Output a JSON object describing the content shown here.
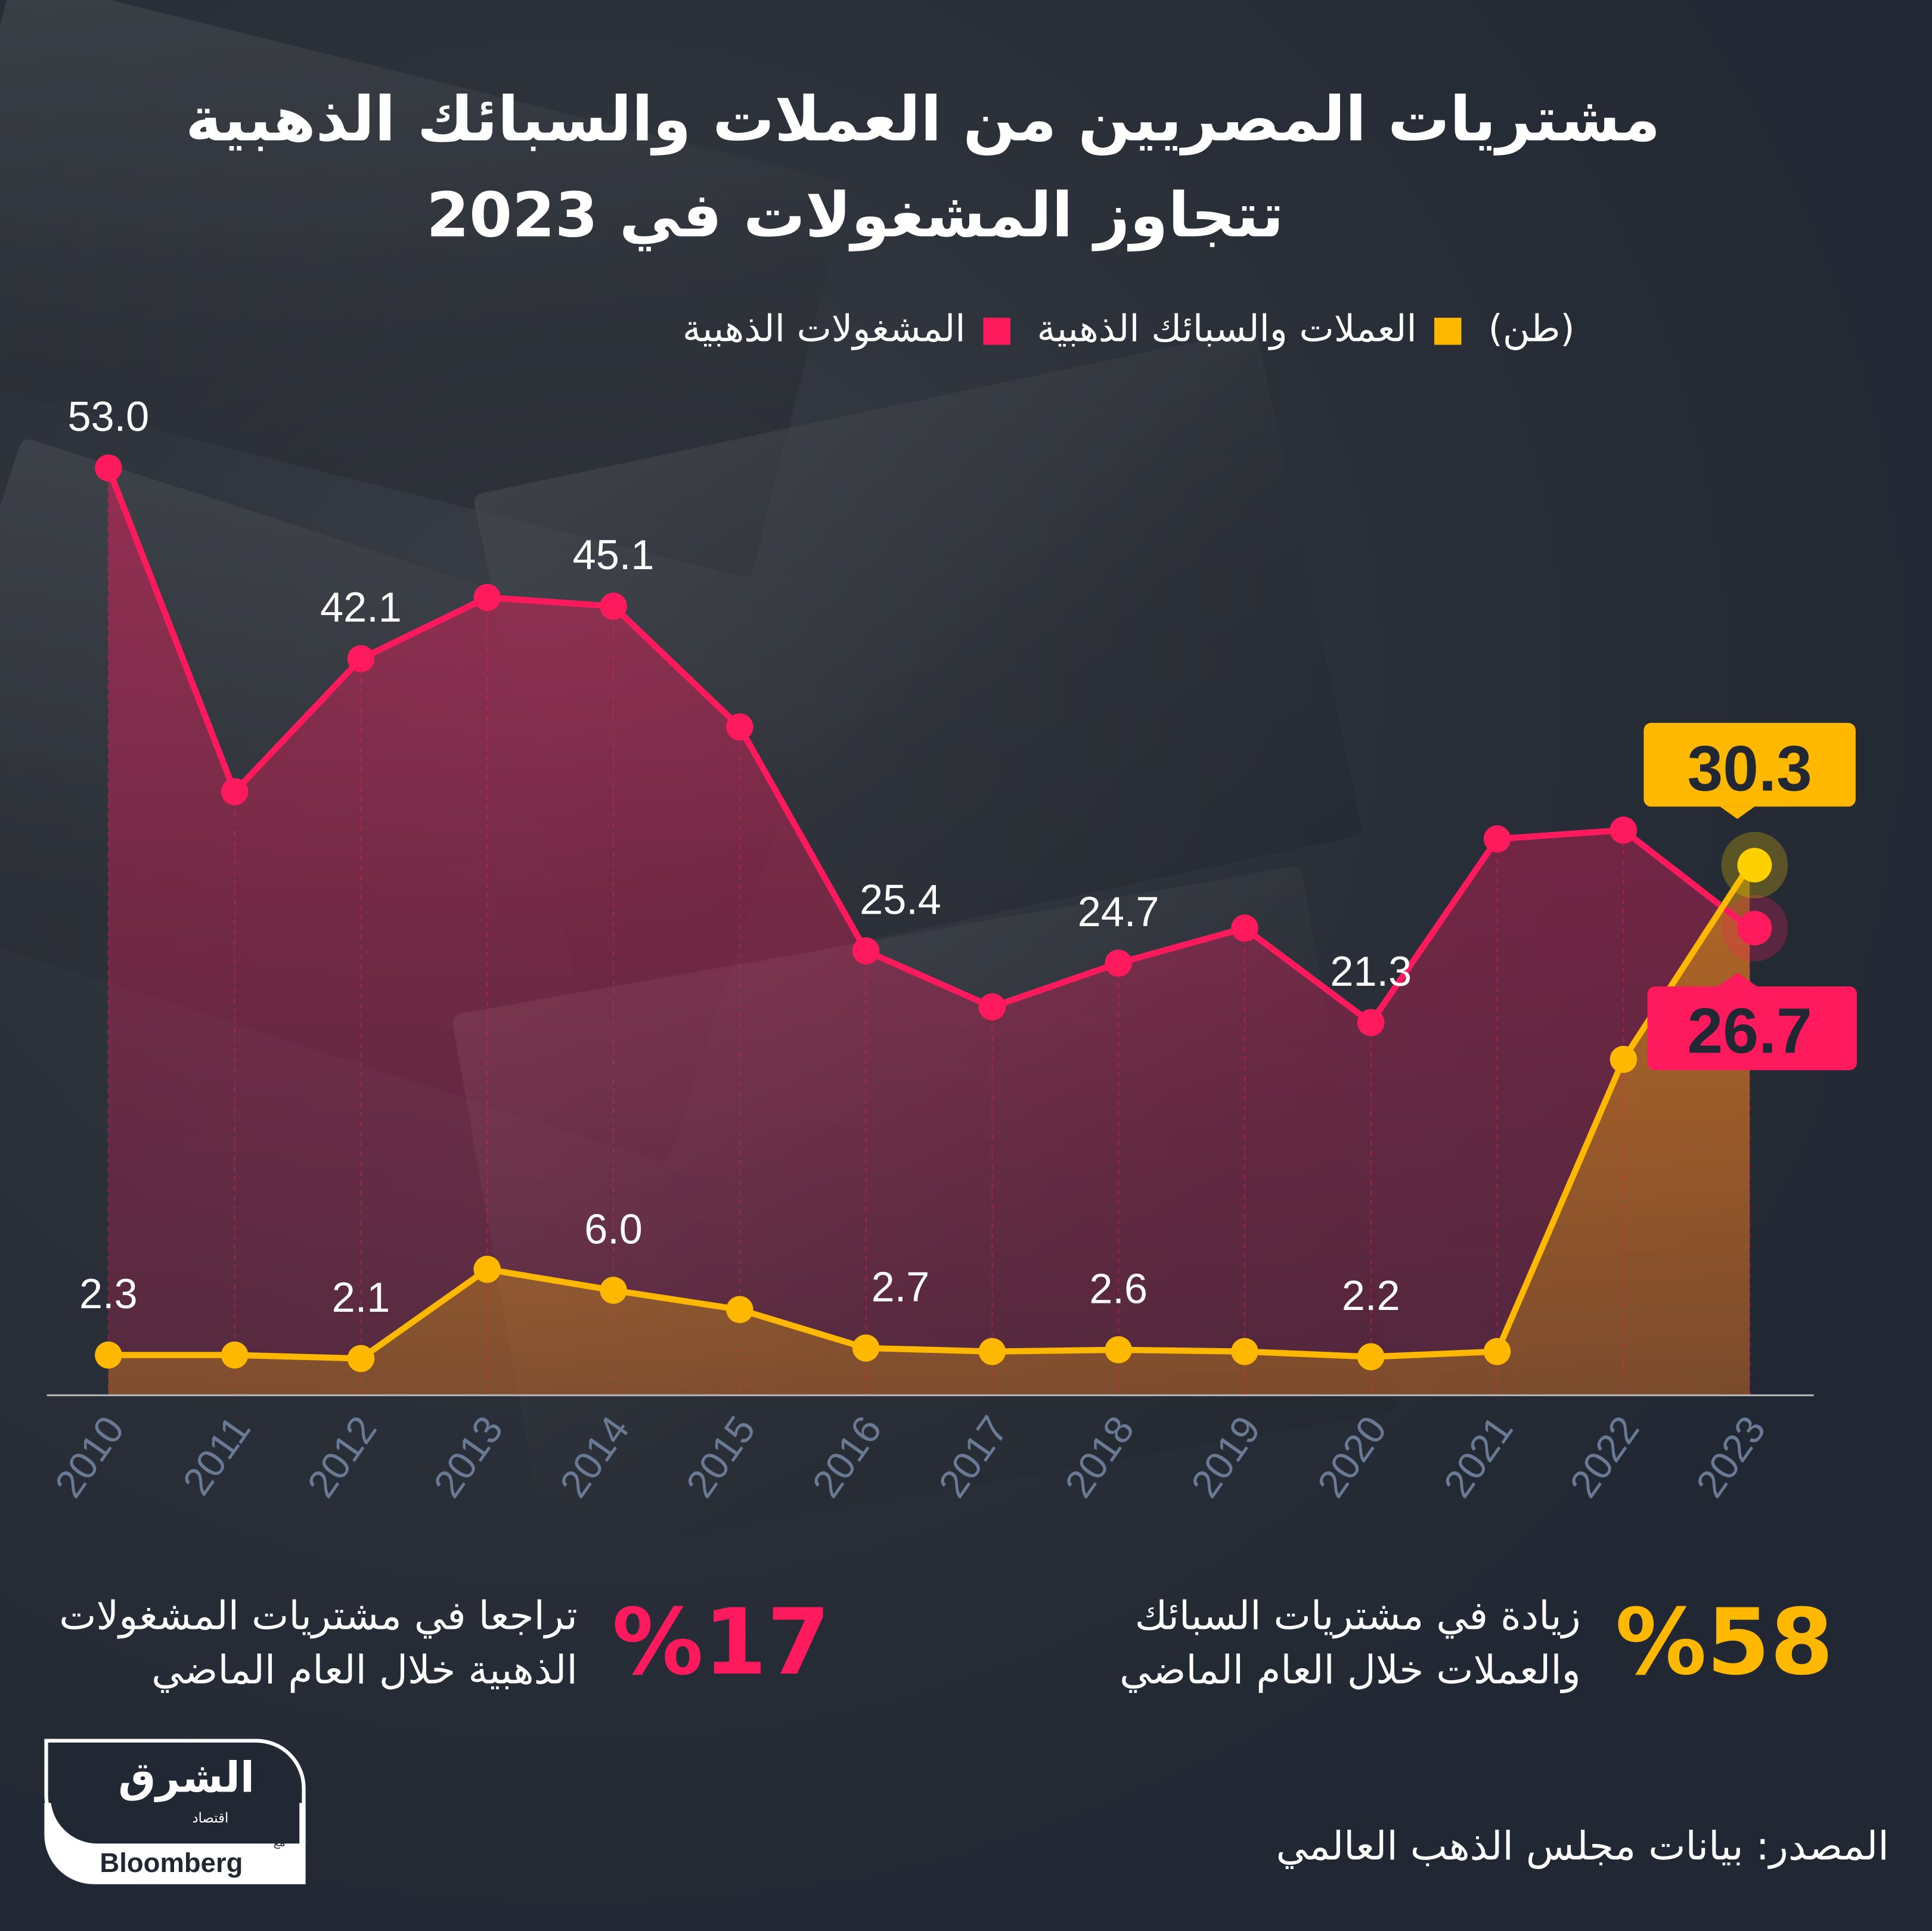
{
  "title": {
    "line1": "مشتريات المصريين من العملات والسبائك الذهبية",
    "line2": "تتجاوز المشغولات في 2023"
  },
  "legend": {
    "unit": "(طن)",
    "items": [
      {
        "label": "العملات والسبائك الذهبية",
        "color": "#FFB800"
      },
      {
        "label": "المشغولات الذهبية",
        "color": "#FF1A5E"
      }
    ]
  },
  "chart_data": {
    "type": "line",
    "categories": [
      "2010",
      "2011",
      "2012",
      "2013",
      "2014",
      "2015",
      "2016",
      "2017",
      "2018",
      "2019",
      "2020",
      "2021",
      "2022",
      "2023"
    ],
    "series": [
      {
        "name": "المشغولات الذهبية",
        "color": "#FF1A5E",
        "values": [
          53.0,
          34.5,
          42.1,
          45.6,
          45.1,
          38.2,
          25.4,
          22.2,
          24.7,
          26.7,
          21.3,
          31.8,
          32.3,
          26.7
        ],
        "labels": [
          "53.0",
          "",
          "42.1",
          "",
          "45.1",
          "",
          "25.4",
          "",
          "24.7",
          "",
          "21.3",
          "",
          "",
          "26.7"
        ]
      },
      {
        "name": "العملات والسبائك الذهبية",
        "color": "#FFB800",
        "values": [
          2.3,
          2.3,
          2.1,
          7.2,
          6.0,
          4.9,
          2.7,
          2.5,
          2.6,
          2.5,
          2.2,
          2.5,
          19.2,
          30.3
        ],
        "labels": [
          "2.3",
          "",
          "2.1",
          "",
          "6.0",
          "",
          "2.7",
          "",
          "2.6",
          "",
          "2.2",
          "",
          "",
          "30.3"
        ]
      }
    ],
    "ylim": [
      0,
      55
    ],
    "grid": false
  },
  "stats": [
    {
      "value": "%58",
      "text1": "زيادة في مشتريات السبائك",
      "text2": "والعملات خلال العام الماضي",
      "color": "#FFB800"
    },
    {
      "value": "%17",
      "text1": "تراجعا في مشتريات المشغولات",
      "text2": "الذهبية خلال العام الماضي",
      "color": "#FF1A5E"
    }
  ],
  "logo": {
    "name": "الشرق",
    "sub": "اقتصاد",
    "with": "مع",
    "partner": "Bloomberg"
  },
  "source": "المصدر: بيانات مجلس الذهب العالمي"
}
